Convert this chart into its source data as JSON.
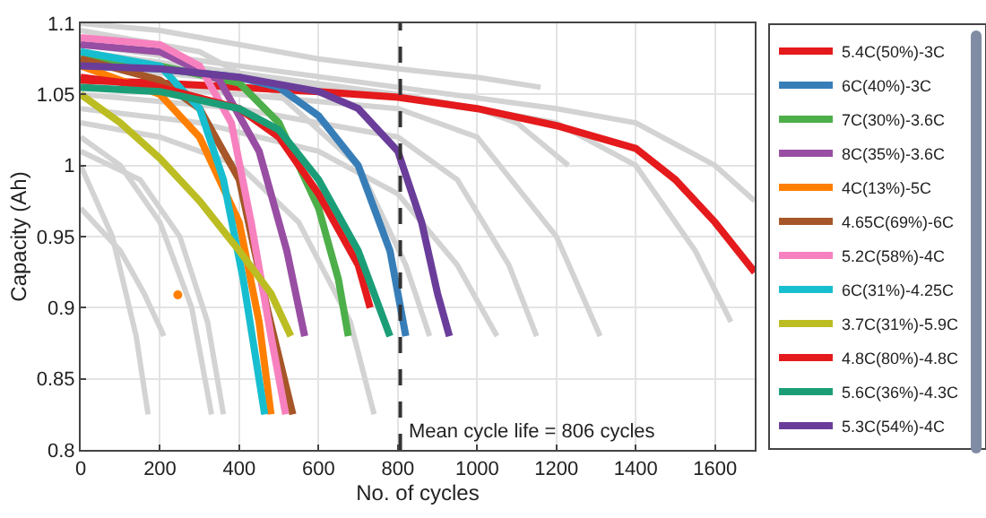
{
  "chart_data": {
    "type": "line",
    "xlabel": "No. of cycles",
    "ylabel": "Capacity (Ah)",
    "xlim": [
      0,
      1700
    ],
    "xticks": [
      0,
      200,
      400,
      600,
      800,
      1000,
      1200,
      1400,
      1600
    ],
    "ylim": [
      0.8,
      1.1
    ],
    "yticks": [
      0.8,
      0.85,
      0.9,
      0.95,
      1,
      1.05,
      1.1
    ],
    "grid": true,
    "legend": "right",
    "ref_lines": [
      {
        "axis": "x",
        "value": 806,
        "label": "Mean cycle life = 806 cycles",
        "color": "#333333",
        "line_style": "dashed"
      }
    ],
    "series": [
      {
        "color": "#d3d3d3",
        "x": [
          0,
          200,
          400,
          600,
          800,
          1000,
          1160
        ],
        "values": [
          1.1,
          1.095,
          1.085,
          1.075,
          1.068,
          1.062,
          1.055
        ]
      },
      {
        "color": "#d3d3d3",
        "x": [
          0,
          400,
          800,
          1200,
          1400,
          1600,
          1700
        ],
        "values": [
          1.085,
          1.07,
          1.055,
          1.04,
          1.03,
          1.0,
          0.975
        ]
      },
      {
        "color": "#d3d3d3",
        "x": [
          0,
          400,
          800,
          1200,
          1400,
          1550,
          1640
        ],
        "values": [
          1.08,
          1.065,
          1.05,
          1.03,
          1.0,
          0.94,
          0.89
        ]
      },
      {
        "color": "#d3d3d3",
        "x": [
          0,
          400,
          800,
          1000,
          1100,
          1230
        ],
        "values": [
          1.07,
          1.06,
          1.05,
          1.04,
          1.03,
          1.0
        ]
      },
      {
        "color": "#d3d3d3",
        "x": [
          0,
          400,
          800,
          1000,
          1200,
          1310
        ],
        "values": [
          1.06,
          1.05,
          1.04,
          1.02,
          0.95,
          0.88
        ]
      },
      {
        "color": "#d3d3d3",
        "x": [
          0,
          400,
          800,
          950,
          1080,
          1150
        ],
        "values": [
          1.05,
          1.04,
          1.02,
          0.99,
          0.93,
          0.88
        ]
      },
      {
        "color": "#d3d3d3",
        "x": [
          0,
          300,
          600,
          800,
          950,
          1050
        ],
        "values": [
          1.04,
          1.03,
          1.01,
          0.98,
          0.93,
          0.88
        ]
      },
      {
        "color": "#d3d3d3",
        "x": [
          0,
          200,
          400,
          550,
          680,
          740
        ],
        "values": [
          1.03,
          1.02,
          1.0,
          0.96,
          0.89,
          0.825
        ]
      },
      {
        "color": "#d3d3d3",
        "x": [
          0,
          100,
          200,
          280,
          330
        ],
        "values": [
          1.02,
          1.0,
          0.96,
          0.9,
          0.825
        ]
      },
      {
        "color": "#d3d3d3",
        "x": [
          0,
          150,
          250,
          320,
          360
        ],
        "values": [
          1.01,
          0.99,
          0.95,
          0.89,
          0.825
        ]
      },
      {
        "color": "#d3d3d3",
        "x": [
          0,
          80,
          140,
          170
        ],
        "values": [
          1.0,
          0.95,
          0.88,
          0.825
        ]
      },
      {
        "color": "#d3d3d3",
        "x": [
          0,
          100,
          160,
          210
        ],
        "values": [
          0.97,
          0.94,
          0.91,
          0.88
        ]
      },
      {
        "color": "#d3d3d3",
        "x": [
          0,
          300,
          500,
          700,
          820,
          880
        ],
        "values": [
          1.095,
          1.08,
          1.05,
          1.0,
          0.93,
          0.88
        ]
      },
      {
        "name": "5.4C(50%)-3C",
        "color": "#e41a1c",
        "x": [
          0,
          200,
          400,
          600,
          800,
          1000,
          1200,
          1400,
          1500,
          1600,
          1700
        ],
        "values": [
          1.06,
          1.058,
          1.055,
          1.052,
          1.048,
          1.04,
          1.028,
          1.012,
          0.99,
          0.96,
          0.925
        ]
      },
      {
        "name": "6C(40%)-3C",
        "color": "#377eb8",
        "x": [
          0,
          200,
          400,
          500,
          600,
          700,
          780,
          820
        ],
        "values": [
          1.07,
          1.068,
          1.062,
          1.055,
          1.035,
          1.0,
          0.94,
          0.88
        ]
      },
      {
        "name": "7C(30%)-3.6C",
        "color": "#4daf4a",
        "x": [
          0,
          200,
          400,
          500,
          600,
          650,
          675
        ],
        "values": [
          1.075,
          1.07,
          1.058,
          1.03,
          0.97,
          0.92,
          0.88
        ]
      },
      {
        "name": "8C(35%)-3.6C",
        "color": "#984ea3",
        "x": [
          0,
          200,
          350,
          450,
          520,
          565
        ],
        "values": [
          1.085,
          1.08,
          1.06,
          1.01,
          0.94,
          0.88
        ]
      },
      {
        "name": "4C(13%)-5C",
        "color": "#ff7f00",
        "x": [
          0,
          200,
          300,
          400,
          450,
          480
        ],
        "values": [
          1.07,
          1.05,
          1.02,
          0.96,
          0.89,
          0.825
        ]
      },
      {
        "name": "4.65C(69%)-6C",
        "color": "#a65628",
        "x": [
          0,
          200,
          300,
          400,
          470,
          535
        ],
        "values": [
          1.075,
          1.06,
          1.04,
          0.99,
          0.9,
          0.825
        ]
      },
      {
        "name": "5.2C(58%)-4C",
        "color": "#f781bf",
        "x": [
          0,
          200,
          300,
          380,
          430,
          480,
          517
        ],
        "values": [
          1.09,
          1.085,
          1.07,
          1.03,
          0.96,
          0.88,
          0.825
        ]
      },
      {
        "name": "6C(31%)-4.25C",
        "color": "#17becf",
        "x": [
          0,
          200,
          300,
          360,
          410,
          464
        ],
        "values": [
          1.08,
          1.07,
          1.04,
          0.99,
          0.92,
          0.825
        ]
      },
      {
        "name": "3.7C(31%)-5.9C",
        "color": "#bcbd22",
        "x": [
          0,
          100,
          200,
          300,
          400,
          480,
          530
        ],
        "values": [
          1.05,
          1.03,
          1.005,
          0.975,
          0.94,
          0.91,
          0.88
        ]
      },
      {
        "name": "4.8C(80%)-4.8C",
        "color": "#e41a1c",
        "x": [
          0,
          200,
          400,
          500,
          600,
          700,
          730
        ],
        "values": [
          1.062,
          1.055,
          1.04,
          1.02,
          0.98,
          0.93,
          0.9
        ]
      },
      {
        "name": "5.6C(36%)-4.3C",
        "color": "#1b9e77",
        "x": [
          0,
          200,
          400,
          500,
          600,
          700,
          780
        ],
        "values": [
          1.055,
          1.052,
          1.04,
          1.025,
          0.99,
          0.94,
          0.88
        ]
      },
      {
        "name": "5.3C(54%)-4C",
        "color": "#6a3d9a",
        "x": [
          0,
          200,
          400,
          600,
          700,
          800,
          860,
          900,
          930
        ],
        "values": [
          1.07,
          1.068,
          1.062,
          1.052,
          1.04,
          1.01,
          0.96,
          0.91,
          0.88
        ]
      },
      {
        "type": "scatter",
        "color": "#ff7f00",
        "x": [
          245
        ],
        "values": [
          0.909
        ]
      }
    ]
  }
}
